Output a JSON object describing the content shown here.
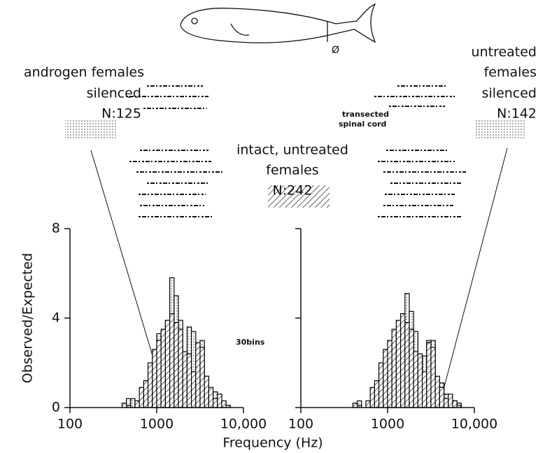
{
  "x_label": "Frequency (Hz)",
  "y_label": "Observed/Expected",
  "annotations": [
    "androgen females",
    "silenced",
    "N:125",
    "intact, untreated",
    "females",
    "N:242",
    "untreated",
    "females",
    "silenced",
    "N:142",
    "transected",
    "spinal cord",
    "30bins"
  ],
  "chart_data": [
    {
      "type": "histogram",
      "log_x": true,
      "xlim": [
        100,
        10000
      ],
      "ylim": [
        0,
        8
      ],
      "xticks": [
        100,
        1000,
        {
          "value": 10000,
          "label": "10,000"
        }
      ],
      "yticks": [
        0,
        4,
        8
      ],
      "show_ytick_labels": true,
      "bins": [
        398,
        447,
        501,
        562,
        631,
        708,
        794,
        891,
        1000,
        1122,
        1259,
        1413,
        1585,
        1778,
        1995,
        2239,
        2512,
        2818,
        3162,
        3548,
        3981,
        4467,
        5012,
        5623,
        6310,
        7079,
        7943
      ],
      "series": [
        {
          "fill": "dotted",
          "color": "#000000",
          "values": [
            0,
            0.4,
            0.4,
            0.2,
            0,
            0.8,
            1.1,
            0.8,
            3.3,
            1.5,
            3.7,
            5.8,
            5.0,
            3.9,
            1.6,
            3.6,
            3.4,
            1.3,
            3.0,
            1.4,
            0.3,
            0.7,
            0.3,
            0.2,
            0,
            0
          ]
        },
        {
          "fill": "hatched",
          "color": "#000000",
          "values": [
            0.2,
            0.1,
            0,
            0.3,
            0.9,
            1.2,
            2.0,
            2.6,
            3.0,
            3.5,
            3.9,
            4.2,
            3.8,
            3.5,
            2.5,
            2.4,
            1.6,
            2.9,
            2.7,
            1.4,
            0.9,
            0.4,
            0.6,
            0.3,
            0.1,
            0
          ]
        }
      ]
    },
    {
      "type": "histogram",
      "log_x": true,
      "xlim": [
        100,
        10000
      ],
      "ylim": [
        0,
        8
      ],
      "xticks": [
        100,
        1000,
        {
          "value": 10000,
          "label": "10,000"
        }
      ],
      "yticks": [
        0,
        4,
        8
      ],
      "show_ytick_labels": false,
      "bins": [
        398,
        447,
        501,
        562,
        631,
        708,
        794,
        891,
        1000,
        1122,
        1259,
        1413,
        1585,
        1778,
        1995,
        2239,
        2512,
        2818,
        3162,
        3548,
        3981,
        4467,
        5012,
        5623,
        6310,
        7079,
        7943
      ],
      "series": [
        {
          "fill": "dotted",
          "color": "#000000",
          "values": [
            0,
            0.3,
            0,
            0,
            0.1,
            0.6,
            0.8,
            1.2,
            1.6,
            1.8,
            2.3,
            3.6,
            5.1,
            4.3,
            3.4,
            2.3,
            2.3,
            3.0,
            3.0,
            1.3,
            1.1,
            0.6,
            0.2,
            0.3,
            0.2,
            0
          ]
        },
        {
          "fill": "hatched",
          "color": "#000000",
          "values": [
            0.2,
            0.1,
            0,
            0.3,
            0.9,
            1.2,
            2.0,
            2.6,
            3.0,
            3.5,
            3.9,
            4.2,
            3.8,
            3.5,
            2.5,
            2.4,
            1.6,
            2.9,
            2.7,
            1.4,
            0.9,
            0.4,
            0.6,
            0.3,
            0.1,
            0
          ]
        }
      ]
    }
  ]
}
